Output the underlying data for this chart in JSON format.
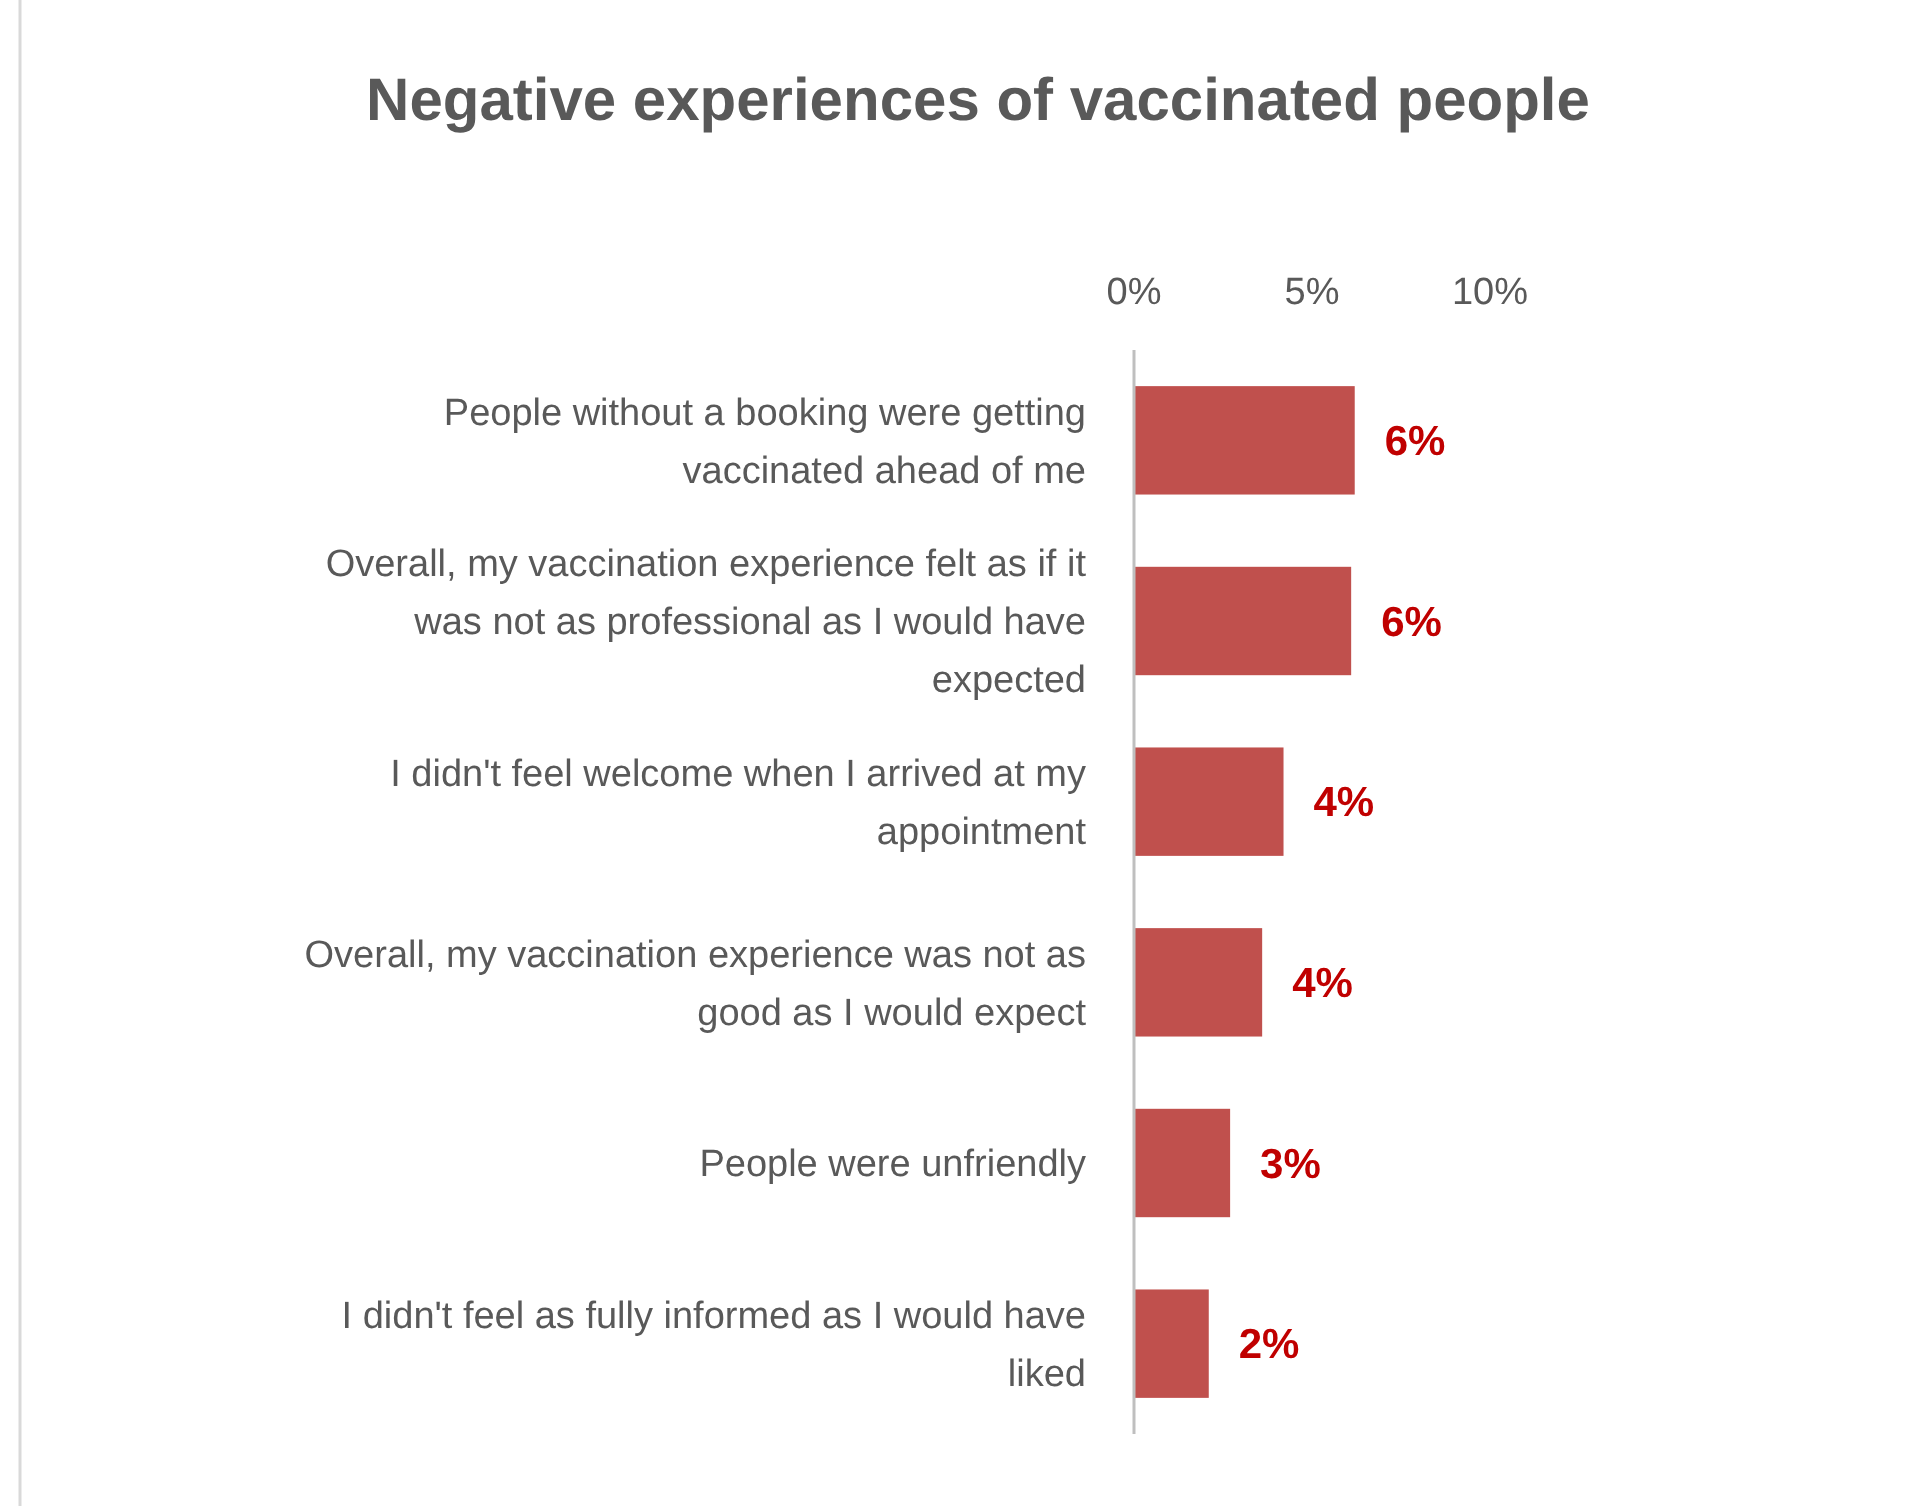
{
  "chart_data": {
    "type": "bar",
    "orientation": "horizontal",
    "title": "Negative experiences of vaccinated people",
    "categories": [
      "People without a booking were getting vaccinated ahead of me",
      "Overall, my vaccination experience felt as if it was not as professional as I would have expected",
      "I didn't feel welcome when I arrived at my appointment",
      "Overall, my vaccination experience was not as good as I would expect",
      "People were unfriendly",
      "I didn't feel as fully informed as I would have liked"
    ],
    "values": [
      6.2,
      6.1,
      4.2,
      3.6,
      2.7,
      2.1
    ],
    "value_labels": [
      "6%",
      "6%",
      "4%",
      "4%",
      "3%",
      "2%"
    ],
    "color": "#c0504d",
    "xlim": [
      0,
      10
    ],
    "xticks": [
      {
        "value": 0,
        "label": "0%"
      },
      {
        "value": 5,
        "label": "5%"
      },
      {
        "value": 10,
        "label": "10%"
      }
    ],
    "grid": false
  }
}
